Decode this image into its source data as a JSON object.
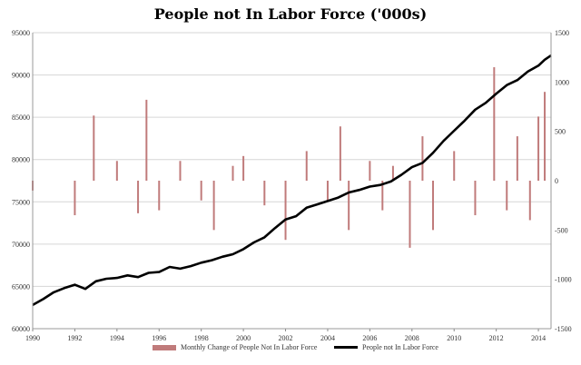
{
  "chart_data": {
    "type": "bar+line",
    "title": "People not In Labor Force ('000s)",
    "x_ticks": [
      "1990",
      "1992",
      "1994",
      "1996",
      "1998",
      "2000",
      "2002",
      "2004",
      "2006",
      "2008",
      "2010",
      "2012",
      "2014"
    ],
    "x_range": [
      1990.0,
      2014.6
    ],
    "left_axis": {
      "ticks": [
        "95000",
        "90000",
        "85000",
        "80000",
        "75000",
        "70000",
        "65000",
        "60000"
      ],
      "ylim": [
        60000,
        95000
      ]
    },
    "right_axis": {
      "ticks": [
        "1500",
        "1000",
        "500",
        "0",
        "-500",
        "-1000",
        "-1500"
      ],
      "ylim": [
        -1500,
        1500
      ]
    },
    "grid": true,
    "legend_position": "bottom",
    "series": [
      {
        "name": "Monthly Change of People Not In Labor Force",
        "kind": "bar",
        "axis": "right",
        "color": "#c07b7b",
        "x": [
          1990.0,
          1992.0,
          1992.9,
          1994.0,
          1995.0,
          1995.4,
          1996.0,
          1997.0,
          1998.0,
          1998.6,
          1999.5,
          2000.0,
          2001.0,
          2002.0,
          2003.0,
          2004.0,
          2004.6,
          2005.0,
          2006.0,
          2006.6,
          2007.1,
          2007.9,
          2008.5,
          2009.0,
          2010.0,
          2011.0,
          2011.9,
          2012.5,
          2013.0,
          2013.6,
          2014.0,
          2014.3
        ],
        "values": [
          -100,
          -350,
          660,
          200,
          -330,
          820,
          -300,
          200,
          -200,
          -500,
          150,
          250,
          -250,
          -600,
          300,
          -200,
          550,
          -500,
          200,
          -300,
          150,
          -680,
          450,
          -500,
          300,
          -350,
          1150,
          -300,
          450,
          -400,
          650,
          900
        ]
      },
      {
        "name": "People not In Labor Force",
        "kind": "line",
        "axis": "left",
        "color": "#000000",
        "x": [
          1990.0,
          1990.5,
          1991.0,
          1991.5,
          1992.0,
          1992.5,
          1993.0,
          1993.5,
          1994.0,
          1994.5,
          1995.0,
          1995.5,
          1996.0,
          1996.5,
          1997.0,
          1997.5,
          1998.0,
          1998.5,
          1999.0,
          1999.5,
          2000.0,
          2000.5,
          2001.0,
          2001.5,
          2002.0,
          2002.5,
          2003.0,
          2003.5,
          2004.0,
          2004.5,
          2005.0,
          2005.5,
          2006.0,
          2006.5,
          2007.0,
          2007.5,
          2008.0,
          2008.5,
          2009.0,
          2009.5,
          2010.0,
          2010.5,
          2011.0,
          2011.5,
          2012.0,
          2012.5,
          2013.0,
          2013.5,
          2014.0,
          2014.3,
          2014.6
        ],
        "values": [
          62800,
          63500,
          64300,
          64800,
          65200,
          64700,
          65600,
          65900,
          66000,
          66300,
          66100,
          66600,
          66700,
          67300,
          67100,
          67400,
          67800,
          68100,
          68500,
          68800,
          69400,
          70200,
          70800,
          71900,
          72900,
          73300,
          74300,
          74700,
          75100,
          75500,
          76100,
          76400,
          76800,
          77000,
          77400,
          78200,
          79100,
          79600,
          80800,
          82200,
          83400,
          84600,
          85900,
          86700,
          87800,
          88800,
          89400,
          90400,
          91100,
          91800,
          92300
        ]
      }
    ]
  }
}
